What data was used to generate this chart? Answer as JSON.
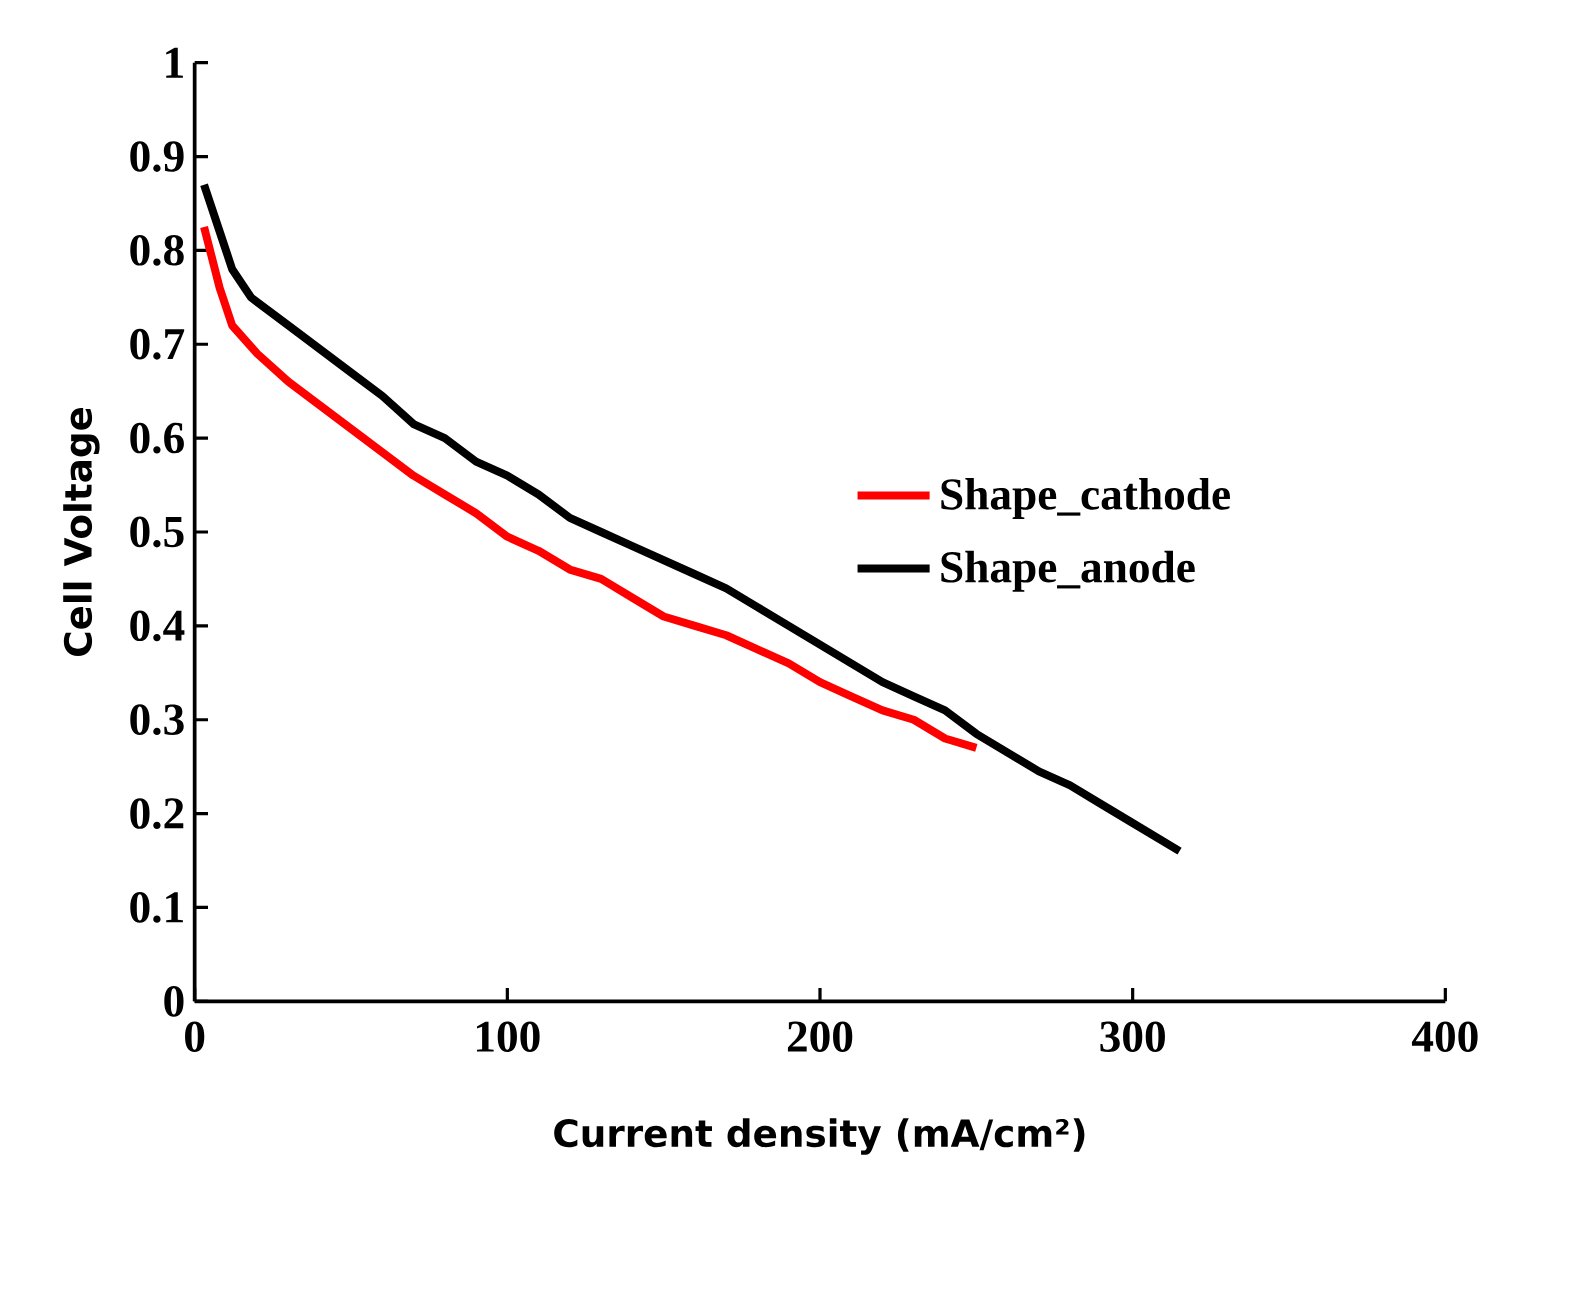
{
  "chart_data": {
    "type": "line",
    "xlabel": "Current density (mA/cm²)",
    "ylabel": "Cell Voltage",
    "xlim": [
      0,
      400
    ],
    "xticks": [
      0,
      100,
      200,
      300,
      400
    ],
    "ylim": [
      0,
      1
    ],
    "yticks": [
      0,
      0.1,
      0.2,
      0.3,
      0.4,
      0.5,
      0.6,
      0.7,
      0.8,
      0.9,
      1
    ],
    "grid": false,
    "legend": "right",
    "marker": "none",
    "line_style": "solid",
    "series": [
      {
        "name": "Shape_cathode",
        "color": "#ff0000",
        "x": [
          3,
          8,
          12,
          20,
          30,
          40,
          50,
          60,
          70,
          80,
          90,
          100,
          110,
          120,
          130,
          140,
          150,
          160,
          170,
          180,
          190,
          200,
          210,
          220,
          230,
          240,
          250
        ],
        "values": [
          0.825,
          0.76,
          0.72,
          0.69,
          0.66,
          0.635,
          0.61,
          0.585,
          0.56,
          0.54,
          0.52,
          0.495,
          0.48,
          0.46,
          0.45,
          0.43,
          0.41,
          0.4,
          0.39,
          0.375,
          0.36,
          0.34,
          0.325,
          0.31,
          0.3,
          0.28,
          0.27
        ]
      },
      {
        "name": "Shape_anode",
        "color": "#000000",
        "x": [
          3,
          8,
          12,
          18,
          30,
          40,
          50,
          60,
          70,
          80,
          90,
          100,
          110,
          120,
          130,
          140,
          150,
          160,
          170,
          180,
          190,
          200,
          210,
          220,
          230,
          240,
          250,
          260,
          270,
          280,
          290,
          300,
          310,
          315
        ],
        "values": [
          0.87,
          0.82,
          0.78,
          0.75,
          0.72,
          0.695,
          0.67,
          0.645,
          0.615,
          0.6,
          0.575,
          0.56,
          0.54,
          0.515,
          0.5,
          0.485,
          0.47,
          0.455,
          0.44,
          0.42,
          0.4,
          0.38,
          0.36,
          0.34,
          0.325,
          0.31,
          0.285,
          0.265,
          0.245,
          0.23,
          0.21,
          0.19,
          0.17,
          0.16
        ]
      }
    ]
  }
}
